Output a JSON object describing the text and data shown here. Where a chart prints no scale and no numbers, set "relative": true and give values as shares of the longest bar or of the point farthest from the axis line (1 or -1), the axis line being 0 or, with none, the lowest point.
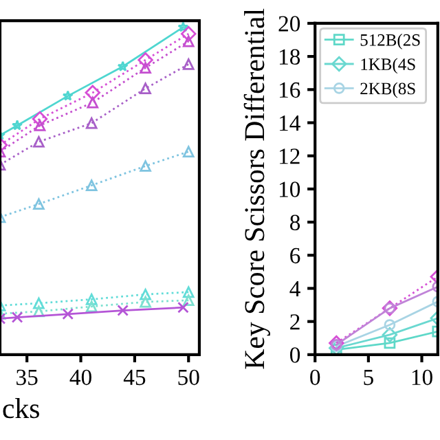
{
  "chart_data": [
    {
      "type": "line",
      "xlabel": "cks",
      "relative": true,
      "xlim": [
        32.5,
        51
      ],
      "xticks": [
        35,
        40,
        45,
        50
      ],
      "grid": false,
      "legend": false,
      "series": [
        {
          "color": "#4fd6d0",
          "marker": "star",
          "line_style": "solid",
          "x": [
            32.5,
            34.1,
            38.8,
            43.9,
            49.5
          ],
          "values": [
            0.67,
            0.7,
            0.79,
            0.88,
            1.0
          ]
        },
        {
          "color": "#d64fd6",
          "marker": "diamond",
          "line_style": "dotted",
          "x": [
            32.5,
            36.2,
            41.1,
            46.0,
            50
          ],
          "values": [
            0.64,
            0.72,
            0.8,
            0.9,
            0.98
          ]
        },
        {
          "color": "#c44fcf",
          "marker": "triangle",
          "line_style": "dotted",
          "x": [
            32.5,
            36.2,
            41.1,
            46.0,
            50
          ],
          "values": [
            0.62,
            0.7,
            0.77,
            0.876,
            0.957
          ]
        },
        {
          "color": "#a860c8",
          "marker": "triangle",
          "line_style": "dotted",
          "x": [
            32.5,
            36.1,
            41.0,
            46.0,
            50
          ],
          "values": [
            0.58,
            0.65,
            0.707,
            0.813,
            0.887
          ]
        },
        {
          "color": "#7fc4e0",
          "marker": "triangle",
          "line_style": "dotted",
          "x": [
            32.5,
            36.1,
            41.0,
            46.0,
            50
          ],
          "values": [
            0.42,
            0.46,
            0.517,
            0.576,
            0.62
          ]
        },
        {
          "color": "#62dcd8",
          "marker": "triangle",
          "line_style": "dotted",
          "x": [
            32.5,
            36.1,
            41.0,
            46.0,
            50
          ],
          "values": [
            0.15,
            0.157,
            0.169,
            0.184,
            0.191
          ]
        },
        {
          "color": "#7ce0d0",
          "marker": "triangle",
          "line_style": "dotted",
          "x": [
            32.5,
            36.1,
            41.0,
            46.0,
            50
          ],
          "values": [
            0.125,
            0.132,
            0.147,
            0.161,
            0.166
          ]
        },
        {
          "color": "#b455d6",
          "marker": "cross",
          "line_style": "solid",
          "x": [
            32.5,
            34.1,
            38.8,
            43.9,
            49.5
          ],
          "values": [
            0.11,
            0.114,
            0.124,
            0.135,
            0.144
          ]
        }
      ]
    },
    {
      "type": "line",
      "ylabel": "Key Score Scissors Differential",
      "xlim": [
        0,
        11.5
      ],
      "xticks": [
        0,
        5,
        10
      ],
      "ylim": [
        0,
        20
      ],
      "yticks": [
        0,
        2,
        4,
        6,
        8,
        10,
        12,
        14,
        16,
        18,
        20
      ],
      "grid": false,
      "legend": "top left",
      "series": [
        {
          "name": "512B(2S",
          "color": "#5ed8c8",
          "marker": "square",
          "line_style": "solid",
          "x": [
            2,
            7,
            11.5
          ],
          "values": [
            0.3,
            0.7,
            1.4
          ]
        },
        {
          "name": "1KB(4S",
          "color": "#6ad8d0",
          "marker": "diamond",
          "line_style": "solid",
          "x": [
            2,
            7,
            11.5
          ],
          "values": [
            0.4,
            1.2,
            2.2
          ]
        },
        {
          "name": "2KB(8S",
          "color": "#a8d4e4",
          "marker": "circle",
          "line_style": "solid",
          "x": [
            2,
            7,
            11.5
          ],
          "values": [
            0.5,
            1.8,
            3.2
          ]
        },
        {
          "color": "#d64fd6",
          "marker": "diamond",
          "line_style": "dotted",
          "x": [
            2,
            7,
            11.5
          ],
          "values": [
            0.7,
            2.8,
            4.7
          ]
        },
        {
          "color": "#c084d8",
          "marker": "circle",
          "line_style": "solid",
          "x": [
            2,
            7,
            11.5
          ],
          "values": [
            0.6,
            2.8,
            4.1
          ]
        }
      ]
    }
  ]
}
